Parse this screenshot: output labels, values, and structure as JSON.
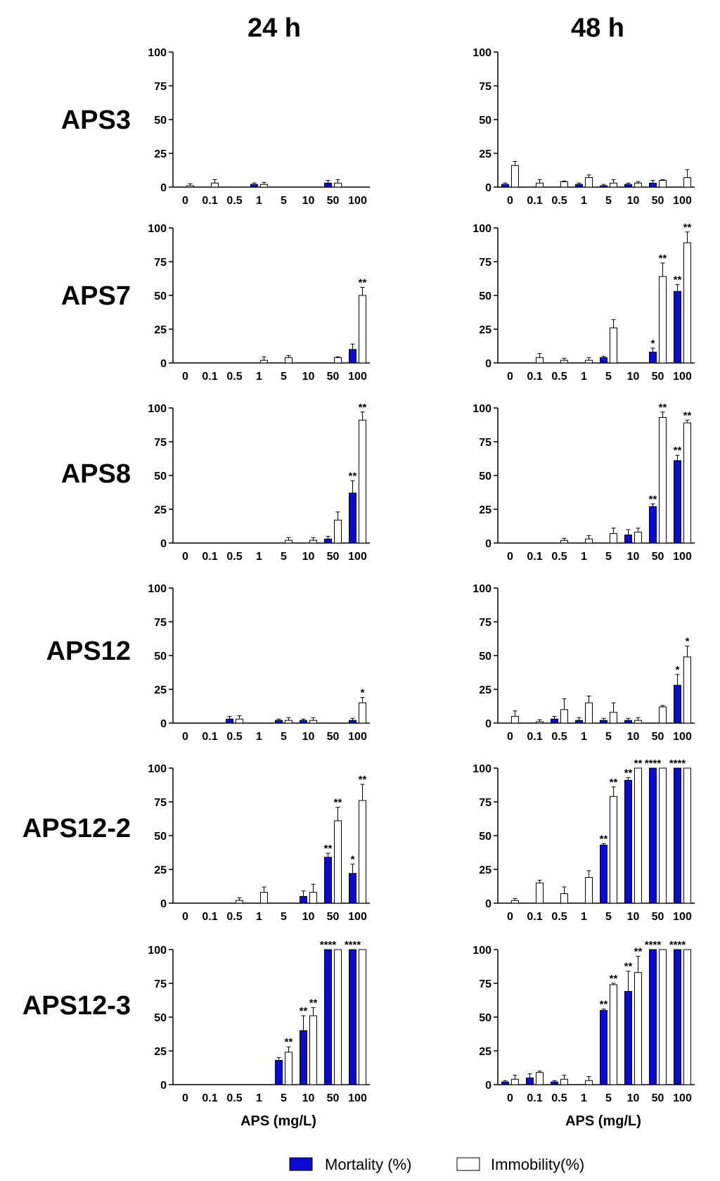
{
  "figure": {
    "column_titles": [
      "24 h",
      "48 h"
    ],
    "row_labels": [
      "APS3",
      "APS7",
      "APS8",
      "APS12",
      "APS12-2",
      "APS12-3"
    ],
    "xlabel": "APS (mg/L)",
    "legend": {
      "mortality": "Mortality (%)",
      "immobility": "Immobility(%)"
    },
    "colors": {
      "mortality": "#0a0ad2",
      "immobility": "#ffffff",
      "stroke": "#000000"
    }
  },
  "chart_data": [
    {
      "type": "bar",
      "row": "APS3",
      "time": "24 h",
      "categories": [
        "0",
        "0.1",
        "0.5",
        "1",
        "5",
        "10",
        "50",
        "100"
      ],
      "ylim": [
        0,
        100
      ],
      "yticks": [
        0,
        25,
        50,
        75,
        100
      ],
      "xlabel": "",
      "series": [
        {
          "name": "Mortality (%)",
          "values": [
            0,
            0,
            0,
            2,
            0,
            0,
            3,
            0
          ],
          "errors": [
            0,
            0,
            0,
            1,
            0,
            0,
            2,
            0
          ],
          "sig": [
            "",
            "",
            "",
            "",
            "",
            "",
            "",
            ""
          ]
        },
        {
          "name": "Immobility(%)",
          "values": [
            1,
            3,
            0,
            2,
            0,
            0,
            3,
            0
          ],
          "errors": [
            1.5,
            2.5,
            0,
            1.5,
            0,
            0,
            2.5,
            0
          ],
          "sig": [
            "",
            "",
            "",
            "",
            "",
            "",
            "",
            ""
          ]
        }
      ]
    },
    {
      "type": "bar",
      "row": "APS3",
      "time": "48 h",
      "categories": [
        "0",
        "0.1",
        "0.5",
        "1",
        "5",
        "10",
        "50",
        "100"
      ],
      "ylim": [
        0,
        100
      ],
      "yticks": [
        0,
        25,
        50,
        75,
        100
      ],
      "xlabel": "",
      "series": [
        {
          "name": "Mortality (%)",
          "values": [
            2,
            0,
            0,
            2,
            1,
            2,
            3,
            0
          ],
          "errors": [
            1,
            0,
            0,
            1,
            1,
            1,
            2,
            0
          ],
          "sig": [
            "",
            "",
            "",
            "",
            "",
            "",
            "",
            ""
          ]
        },
        {
          "name": "Immobility(%)",
          "values": [
            16,
            3,
            4,
            7,
            3,
            3,
            5,
            7
          ],
          "errors": [
            3,
            2.5,
            0.5,
            2,
            2.5,
            1,
            0.5,
            6
          ],
          "sig": [
            "",
            "",
            "",
            "",
            "",
            "",
            "",
            ""
          ]
        }
      ]
    },
    {
      "type": "bar",
      "row": "APS7",
      "time": "24 h",
      "categories": [
        "0",
        "0.1",
        "0.5",
        "1",
        "5",
        "10",
        "50",
        "100"
      ],
      "ylim": [
        0,
        100
      ],
      "yticks": [
        0,
        25,
        50,
        75,
        100
      ],
      "xlabel": "",
      "series": [
        {
          "name": "Mortality (%)",
          "values": [
            0,
            0,
            0,
            0,
            0,
            0,
            0,
            10
          ],
          "errors": [
            0,
            0,
            0,
            0,
            0,
            0,
            0,
            4
          ],
          "sig": [
            "",
            "",
            "",
            "",
            "",
            "",
            "",
            ""
          ]
        },
        {
          "name": "Immobility(%)",
          "values": [
            0,
            0,
            0,
            2,
            4,
            0,
            4,
            50
          ],
          "errors": [
            0,
            0,
            0,
            2.5,
            1.5,
            0,
            0.5,
            6
          ],
          "sig": [
            "",
            "",
            "",
            "",
            "",
            "",
            "",
            "**"
          ]
        }
      ]
    },
    {
      "type": "bar",
      "row": "APS7",
      "time": "48 h",
      "categories": [
        "0",
        "0.1",
        "0.5",
        "1",
        "5",
        "10",
        "50",
        "100"
      ],
      "ylim": [
        0,
        100
      ],
      "yticks": [
        0,
        25,
        50,
        75,
        100
      ],
      "xlabel": "",
      "series": [
        {
          "name": "Mortality (%)",
          "values": [
            0,
            0,
            0,
            0,
            4,
            0,
            8,
            53
          ],
          "errors": [
            0,
            0,
            0,
            0,
            1,
            0,
            3,
            5
          ],
          "sig": [
            "",
            "",
            "",
            "",
            "",
            "",
            "*",
            "**"
          ]
        },
        {
          "name": "Immobility(%)",
          "values": [
            0,
            4,
            2,
            2,
            26,
            0,
            64,
            89
          ],
          "errors": [
            0,
            3,
            1.5,
            2,
            6,
            0,
            10,
            8
          ],
          "sig": [
            "",
            "",
            "",
            "",
            "",
            "",
            "**",
            "**"
          ]
        }
      ]
    },
    {
      "type": "bar",
      "row": "APS8",
      "time": "24 h",
      "categories": [
        "0",
        "0.1",
        "0.5",
        "1",
        "5",
        "10",
        "50",
        "100"
      ],
      "ylim": [
        0,
        100
      ],
      "yticks": [
        0,
        25,
        50,
        75,
        100
      ],
      "xlabel": "",
      "series": [
        {
          "name": "Mortality (%)",
          "values": [
            0,
            0,
            0,
            0,
            0,
            0,
            3,
            37
          ],
          "errors": [
            0,
            0,
            0,
            0,
            0,
            0,
            2,
            9
          ],
          "sig": [
            "",
            "",
            "",
            "",
            "",
            "",
            "",
            "**"
          ]
        },
        {
          "name": "Immobility(%)",
          "values": [
            0,
            0,
            0,
            0,
            2,
            2,
            17,
            91
          ],
          "errors": [
            0,
            0,
            0,
            0,
            2,
            2,
            6,
            6
          ],
          "sig": [
            "",
            "",
            "",
            "",
            "",
            "",
            "",
            "**"
          ]
        }
      ]
    },
    {
      "type": "bar",
      "row": "APS8",
      "time": "48 h",
      "categories": [
        "0",
        "0.1",
        "0.5",
        "1",
        "5",
        "10",
        "50",
        "100"
      ],
      "ylim": [
        0,
        100
      ],
      "yticks": [
        0,
        25,
        50,
        75,
        100
      ],
      "xlabel": "",
      "series": [
        {
          "name": "Mortality (%)",
          "values": [
            0,
            0,
            0,
            0,
            0,
            6,
            27,
            61
          ],
          "errors": [
            0,
            0,
            0,
            0,
            0,
            4,
            2,
            4
          ],
          "sig": [
            "",
            "",
            "",
            "",
            "",
            "",
            "**",
            "**"
          ]
        },
        {
          "name": "Immobility(%)",
          "values": [
            0,
            0,
            2,
            3,
            7,
            8,
            93,
            89
          ],
          "errors": [
            0,
            0,
            1.5,
            2.5,
            4,
            3,
            4,
            2
          ],
          "sig": [
            "",
            "",
            "",
            "",
            "",
            "",
            "**",
            "**"
          ]
        }
      ]
    },
    {
      "type": "bar",
      "row": "APS12",
      "time": "24 h",
      "categories": [
        "0",
        "0.1",
        "0.5",
        "1",
        "5",
        "10",
        "50",
        "100"
      ],
      "ylim": [
        0,
        100
      ],
      "yticks": [
        0,
        25,
        50,
        75,
        100
      ],
      "xlabel": "",
      "series": [
        {
          "name": "Mortality (%)",
          "values": [
            0,
            0,
            3,
            0,
            2,
            2,
            0,
            2
          ],
          "errors": [
            0,
            0,
            2,
            0,
            1,
            1,
            0,
            1.5
          ],
          "sig": [
            "",
            "",
            "",
            "",
            "",
            "",
            "",
            ""
          ]
        },
        {
          "name": "Immobility(%)",
          "values": [
            0,
            0,
            3,
            0,
            2,
            2,
            0,
            15
          ],
          "errors": [
            0,
            0,
            2.5,
            0,
            2,
            2,
            0,
            4
          ],
          "sig": [
            "",
            "",
            "",
            "",
            "",
            "",
            "",
            "*"
          ]
        }
      ]
    },
    {
      "type": "bar",
      "row": "APS12",
      "time": "48 h",
      "categories": [
        "0",
        "0.1",
        "0.5",
        "1",
        "5",
        "10",
        "50",
        "100"
      ],
      "ylim": [
        0,
        100
      ],
      "yticks": [
        0,
        25,
        50,
        75,
        100
      ],
      "xlabel": "",
      "series": [
        {
          "name": "Mortality (%)",
          "values": [
            0,
            0,
            3,
            2,
            2,
            2,
            0,
            28
          ],
          "errors": [
            0,
            0,
            2,
            2,
            1.5,
            1.5,
            0,
            8
          ],
          "sig": [
            "",
            "",
            "",
            "",
            "",
            "",
            "",
            "*"
          ]
        },
        {
          "name": "Immobility(%)",
          "values": [
            5,
            1,
            10,
            15,
            8,
            2,
            12,
            49
          ],
          "errors": [
            4,
            1.5,
            8,
            5,
            7,
            2,
            1,
            8
          ],
          "sig": [
            "",
            "",
            "",
            "",
            "",
            "",
            "",
            "*"
          ]
        }
      ]
    },
    {
      "type": "bar",
      "row": "APS12-2",
      "time": "24 h",
      "categories": [
        "0",
        "0.1",
        "0.5",
        "1",
        "5",
        "10",
        "50",
        "100"
      ],
      "ylim": [
        0,
        100
      ],
      "yticks": [
        0,
        25,
        50,
        75,
        100
      ],
      "xlabel": "",
      "series": [
        {
          "name": "Mortality (%)",
          "values": [
            0,
            0,
            0,
            0,
            0,
            5,
            34,
            22
          ],
          "errors": [
            0,
            0,
            0,
            0,
            0,
            4,
            3,
            7
          ],
          "sig": [
            "",
            "",
            "",
            "",
            "",
            "",
            "**",
            "*"
          ]
        },
        {
          "name": "Immobility(%)",
          "values": [
            0,
            0,
            2,
            8,
            0,
            8,
            61,
            76
          ],
          "errors": [
            0,
            0,
            2,
            4,
            0,
            6,
            10,
            12
          ],
          "sig": [
            "",
            "",
            "",
            "",
            "",
            "",
            "**",
            "**"
          ]
        }
      ]
    },
    {
      "type": "bar",
      "row": "APS12-2",
      "time": "48 h",
      "categories": [
        "0",
        "0.1",
        "0.5",
        "1",
        "5",
        "10",
        "50",
        "100"
      ],
      "ylim": [
        0,
        100
      ],
      "yticks": [
        0,
        25,
        50,
        75,
        100
      ],
      "xlabel": "",
      "series": [
        {
          "name": "Mortality (%)",
          "values": [
            0,
            0,
            0,
            0,
            43,
            91,
            100,
            100
          ],
          "errors": [
            0,
            0,
            0,
            0,
            1,
            2,
            0,
            0
          ],
          "sig": [
            "",
            "",
            "",
            "",
            "**",
            "**",
            "****",
            "****"
          ]
        },
        {
          "name": "Immobility(%)",
          "values": [
            2,
            15,
            7,
            19,
            79,
            100,
            100,
            100
          ],
          "errors": [
            1.5,
            2,
            5,
            5,
            7,
            0,
            0,
            0
          ],
          "sig": [
            "",
            "",
            "",
            "",
            "**",
            "**",
            "",
            ""
          ]
        }
      ]
    },
    {
      "type": "bar",
      "row": "APS12-3",
      "time": "24 h",
      "categories": [
        "0",
        "0.1",
        "0.5",
        "1",
        "5",
        "10",
        "50",
        "100"
      ],
      "ylim": [
        0,
        100
      ],
      "yticks": [
        0,
        25,
        50,
        75,
        100
      ],
      "xlabel": "APS (mg/L)",
      "series": [
        {
          "name": "Mortality (%)",
          "values": [
            0,
            0,
            0,
            0,
            18,
            40,
            100,
            100
          ],
          "errors": [
            0,
            0,
            0,
            0,
            2,
            11,
            0,
            0
          ],
          "sig": [
            "",
            "",
            "",
            "",
            "",
            "**",
            "****",
            "****"
          ]
        },
        {
          "name": "Immobility(%)",
          "values": [
            0,
            0,
            0,
            0,
            24,
            51,
            100,
            100
          ],
          "errors": [
            0,
            0,
            0,
            0,
            4,
            6,
            0,
            0
          ],
          "sig": [
            "",
            "",
            "",
            "",
            "**",
            "**",
            "",
            ""
          ]
        }
      ]
    },
    {
      "type": "bar",
      "row": "APS12-3",
      "time": "48 h",
      "categories": [
        "0",
        "0.1",
        "0.5",
        "1",
        "5",
        "10",
        "50",
        "100"
      ],
      "ylim": [
        0,
        100
      ],
      "yticks": [
        0,
        25,
        50,
        75,
        100
      ],
      "xlabel": "APS (mg/L)",
      "series": [
        {
          "name": "Mortality (%)",
          "values": [
            2,
            5,
            2,
            0,
            55,
            69,
            100,
            100
          ],
          "errors": [
            1,
            3,
            1,
            0,
            1,
            15,
            0,
            0
          ],
          "sig": [
            "",
            "",
            "",
            "",
            "**",
            "**",
            "****",
            "****"
          ]
        },
        {
          "name": "Immobility(%)",
          "values": [
            4,
            9,
            4,
            3,
            74,
            83,
            100,
            100
          ],
          "errors": [
            3,
            1,
            3,
            3,
            1,
            12,
            0,
            0
          ],
          "sig": [
            "",
            "",
            "",
            "",
            "**",
            "**",
            "",
            ""
          ]
        }
      ]
    }
  ]
}
